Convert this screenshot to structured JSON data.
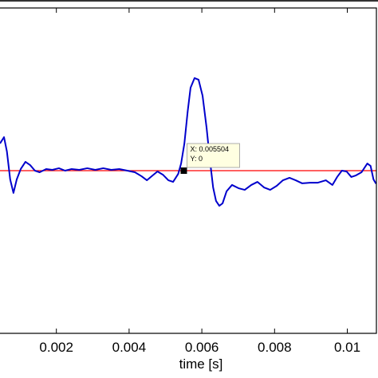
{
  "chart_data": {
    "type": "line",
    "x_label": "time [s]",
    "x": [
      0.00045,
      0.00056,
      0.00064,
      0.00073,
      0.00082,
      0.00091,
      0.00102,
      0.00115,
      0.00128,
      0.00141,
      0.00154,
      0.00172,
      0.00189,
      0.00207,
      0.00224,
      0.00242,
      0.00263,
      0.00285,
      0.00307,
      0.00329,
      0.00351,
      0.00373,
      0.00395,
      0.00416,
      0.00434,
      0.00449,
      0.00465,
      0.00478,
      0.00493,
      0.00508,
      0.00521,
      0.00535,
      0.00543,
      0.00552,
      0.00561,
      0.00569,
      0.0058,
      0.00591,
      0.00602,
      0.00613,
      0.00622,
      0.00631,
      0.00639,
      0.00648,
      0.00657,
      0.00668,
      0.00683,
      0.00701,
      0.00718,
      0.00736,
      0.00753,
      0.00771,
      0.00788,
      0.00806,
      0.00823,
      0.00841,
      0.00858,
      0.00876,
      0.00897,
      0.00919,
      0.00941,
      0.00959,
      0.00972,
      0.00985,
      0.00998,
      0.01011,
      0.01024,
      0.01039,
      0.01055,
      0.01064,
      0.01072,
      0.01079
    ],
    "series": [
      {
        "color": "#0000cc",
        "values": [
          0.167,
          0.206,
          0.118,
          -0.054,
          -0.137,
          -0.054,
          0.01,
          0.054,
          0.034,
          0,
          -0.01,
          0.01,
          0.005,
          0.015,
          0,
          0.01,
          0.005,
          0.015,
          0.005,
          0.015,
          0.005,
          0.01,
          0,
          -0.01,
          -0.034,
          -0.059,
          -0.029,
          -0.005,
          -0.025,
          -0.059,
          -0.069,
          -0.02,
          0.044,
          0.167,
          0.363,
          0.51,
          0.569,
          0.559,
          0.461,
          0.265,
          0.069,
          -0.103,
          -0.186,
          -0.216,
          -0.201,
          -0.127,
          -0.088,
          -0.108,
          -0.118,
          -0.088,
          -0.069,
          -0.103,
          -0.118,
          -0.093,
          -0.059,
          -0.044,
          -0.059,
          -0.078,
          -0.074,
          -0.074,
          -0.059,
          -0.088,
          -0.039,
          0,
          -0.005,
          -0.039,
          -0.029,
          -0.01,
          0.044,
          0.029,
          -0.054,
          -0.08
        ]
      }
    ],
    "reference_line": {
      "y": 0,
      "color": "#ff0000"
    },
    "datatip": {
      "x": 0.005504,
      "y": 0,
      "lines": [
        "X: 0.005504",
        "Y: 0"
      ]
    },
    "xlim": [
      0.00045,
      0.0108
    ],
    "ylim": [
      -1,
      1
    ],
    "xticks": [
      0.002,
      0.004,
      0.006,
      0.008,
      0.01
    ]
  }
}
